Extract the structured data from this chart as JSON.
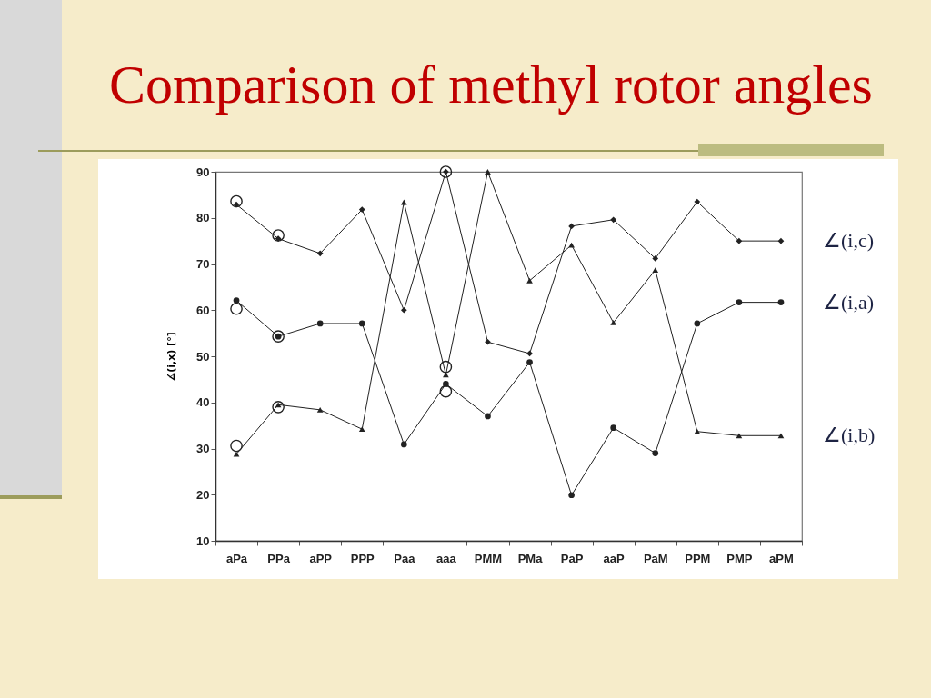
{
  "chart_data": {
    "type": "line",
    "title": "Comparison of methyl rotor angles",
    "ylabel": "∡(i,x) [°]",
    "categories": [
      "aPa",
      "PPa",
      "aPP",
      "PPP",
      "Paa",
      "aaa",
      "PMM",
      "PMa",
      "PaP",
      "aaP",
      "PaM",
      "PPM",
      "PMP",
      "aPM"
    ],
    "series": [
      {
        "name": "∠(i,c)",
        "color": "#222222",
        "marker": "diamond",
        "values": [
          82.9,
          75.5,
          72.3,
          81.8,
          60.0,
          90.0,
          53.1,
          50.6,
          78.2,
          79.6,
          71.2,
          83.5,
          75.0,
          75.0
        ]
      },
      {
        "name": "∠(i,a)",
        "color": "#222222",
        "marker": "circle",
        "values": [
          62.1,
          54.3,
          57.1,
          57.1,
          30.9,
          44.0,
          37.0,
          48.7,
          19.9,
          34.5,
          29.0,
          57.1,
          61.7,
          61.7
        ]
      },
      {
        "name": "∠(i,b)",
        "color": "#222222",
        "marker": "triangle",
        "values": [
          28.8,
          39.5,
          38.4,
          34.2,
          83.4,
          46.0,
          90.0,
          66.4,
          74.1,
          57.3,
          68.7,
          33.7,
          32.8,
          32.8
        ]
      },
      {
        "type": "scatter",
        "color": "#222222",
        "marker": "circle",
        "x": [
          "aPa",
          "aPa",
          "aPa",
          "PPa",
          "PPa",
          "PPa",
          "aaa",
          "aaa",
          "aaa"
        ],
        "values": [
          83.6,
          60.3,
          30.6,
          76.2,
          54.3,
          39.0,
          90.0,
          47.7,
          42.4
        ]
      }
    ],
    "ylim": [
      10,
      90
    ],
    "yticks": [
      10,
      20,
      30,
      40,
      50,
      60,
      70,
      80,
      90
    ]
  }
}
